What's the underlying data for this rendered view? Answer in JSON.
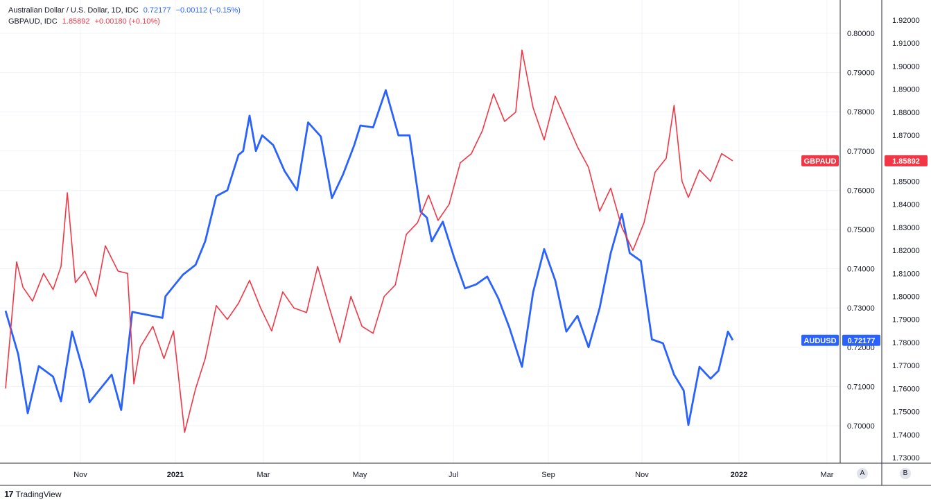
{
  "legend": {
    "audusd": {
      "name": "Australian Dollar / U.S. Dollar, 1D, IDC",
      "value": "0.72177",
      "change": "−0.00112 (−0.15%)"
    },
    "gbpaud": {
      "name": "GBPAUD, IDC",
      "value": "1.85892",
      "change": "+0.00180 (+0.10%)"
    }
  },
  "price_tags": {
    "audusd": {
      "label": "AUDUSD",
      "value": "0.72177"
    },
    "gbpaud": {
      "label": "GBPAUD",
      "value": "1.85892"
    }
  },
  "scale_buttons": {
    "a": "A",
    "b": "B"
  },
  "branding": "TradingView",
  "colors": {
    "audusd": "#2962ff",
    "gbpaud": "#f23645",
    "grid": "#f0f3fa",
    "axis_text": "#131722"
  },
  "chart_data": {
    "type": "line",
    "x_ticks": [
      {
        "label": "Nov",
        "bold": false
      },
      {
        "label": "2021",
        "bold": true
      },
      {
        "label": "Mar",
        "bold": false
      },
      {
        "label": "May",
        "bold": false
      },
      {
        "label": "Jul",
        "bold": false
      },
      {
        "label": "Sep",
        "bold": false
      },
      {
        "label": "Nov",
        "bold": false
      },
      {
        "label": "2022",
        "bold": true
      },
      {
        "label": "Mar",
        "bold": false
      }
    ],
    "axes": {
      "audusd": {
        "ylim": [
          0.692,
          0.81
        ],
        "ticks": [
          "0.80000",
          "0.79000",
          "0.78000",
          "0.77000",
          "0.76000",
          "0.75000",
          "0.74000",
          "0.73000",
          "0.72000",
          "0.71000",
          "0.70000"
        ]
      },
      "gbpaud": {
        "ylim": [
          1.73,
          1.92
        ],
        "ticks": [
          "1.92000",
          "1.91000",
          "1.90000",
          "1.89000",
          "1.88000",
          "1.87000",
          "1.86000",
          "1.85000",
          "1.84000",
          "1.83000",
          "1.82000",
          "1.81000",
          "1.80000",
          "1.79000",
          "1.78000",
          "1.77000",
          "1.76000",
          "1.75000",
          "1.74000",
          "1.73000"
        ]
      }
    },
    "series": [
      {
        "name": "AUDUSD",
        "axis": "audusd",
        "x": [
          "2020-09-28",
          "2020-10-06",
          "2020-10-12",
          "2020-10-19",
          "2020-10-28",
          "2020-11-02",
          "2020-11-09",
          "2020-11-16",
          "2020-11-20",
          "2020-11-30",
          "2020-12-04",
          "2020-12-10",
          "2020-12-17",
          "2021-01-05",
          "2021-01-07",
          "2021-01-18",
          "2021-01-26",
          "2021-02-01",
          "2021-02-08",
          "2021-02-15",
          "2021-02-22",
          "2021-02-25",
          "2021-03-01",
          "2021-03-05",
          "2021-03-09",
          "2021-03-16",
          "2021-03-23",
          "2021-03-31",
          "2021-04-07",
          "2021-04-15",
          "2021-04-22",
          "2021-04-29",
          "2021-05-06",
          "2021-05-10",
          "2021-05-18",
          "2021-05-26",
          "2021-06-03",
          "2021-06-10",
          "2021-06-17",
          "2021-06-21",
          "2021-06-24",
          "2021-07-01",
          "2021-07-08",
          "2021-07-15",
          "2021-07-22",
          "2021-07-29",
          "2021-08-05",
          "2021-08-12",
          "2021-08-20",
          "2021-08-27",
          "2021-09-03",
          "2021-09-10",
          "2021-09-17",
          "2021-09-24",
          "2021-10-01",
          "2021-10-08",
          "2021-10-15",
          "2021-10-22",
          "2021-10-27",
          "2021-11-03",
          "2021-11-10",
          "2021-11-17",
          "2021-11-24",
          "2021-11-30",
          "2021-12-03",
          "2021-12-10",
          "2021-12-17",
          "2021-12-22",
          "2021-12-28",
          "2021-12-31"
        ],
        "values": [
          0.7293,
          0.7182,
          0.7032,
          0.7152,
          0.7125,
          0.7062,
          0.724,
          0.714,
          0.706,
          0.711,
          0.713,
          0.704,
          0.729,
          0.7275,
          0.733,
          0.7385,
          0.741,
          0.747,
          0.7585,
          0.76,
          0.769,
          0.77,
          0.779,
          0.77,
          0.774,
          0.7715,
          0.765,
          0.76,
          0.7773,
          0.7737,
          0.758,
          0.764,
          0.7714,
          0.7765,
          0.776,
          0.7855,
          0.774,
          0.774,
          0.7545,
          0.753,
          0.747,
          0.752,
          0.743,
          0.735,
          0.736,
          0.738,
          0.7325,
          0.725,
          0.715,
          0.734,
          0.745,
          0.737,
          0.724,
          0.728,
          0.72,
          0.73,
          0.744,
          0.754,
          0.744,
          0.742,
          0.722,
          0.721,
          0.713,
          0.709,
          0.7002,
          0.715,
          0.712,
          0.714,
          0.724,
          0.7218
        ]
      },
      {
        "name": "GBPAUD",
        "axis": "gbpaud",
        "x": [
          "2020-09-28",
          "2020-10-05",
          "2020-10-09",
          "2020-10-15",
          "2020-10-22",
          "2020-10-28",
          "2020-11-02",
          "2020-11-06",
          "2020-11-11",
          "2020-11-17",
          "2020-11-24",
          "2020-11-30",
          "2020-12-08",
          "2020-12-14",
          "2020-12-18",
          "2020-12-22",
          "2020-12-30",
          "2021-01-06",
          "2021-01-12",
          "2021-01-19",
          "2021-01-26",
          "2021-02-01",
          "2021-02-08",
          "2021-02-15",
          "2021-02-22",
          "2021-03-01",
          "2021-03-08",
          "2021-03-15",
          "2021-03-22",
          "2021-03-29",
          "2021-04-06",
          "2021-04-13",
          "2021-04-20",
          "2021-04-27",
          "2021-05-04",
          "2021-05-11",
          "2021-05-18",
          "2021-05-25",
          "2021-06-01",
          "2021-06-08",
          "2021-06-15",
          "2021-06-22",
          "2021-06-28",
          "2021-07-05",
          "2021-07-12",
          "2021-07-19",
          "2021-07-26",
          "2021-08-02",
          "2021-08-09",
          "2021-08-16",
          "2021-08-20",
          "2021-08-27",
          "2021-09-03",
          "2021-09-10",
          "2021-09-17",
          "2021-09-24",
          "2021-10-01",
          "2021-10-08",
          "2021-10-15",
          "2021-10-22",
          "2021-10-29",
          "2021-11-05",
          "2021-11-12",
          "2021-11-19",
          "2021-11-24",
          "2021-11-29",
          "2021-12-03",
          "2021-12-10",
          "2021-12-17",
          "2021-12-24",
          "2021-12-31"
        ],
        "values": [
          1.76,
          1.815,
          1.804,
          1.798,
          1.81,
          1.803,
          1.813,
          1.845,
          1.806,
          1.811,
          1.8,
          1.822,
          1.811,
          1.81,
          1.762,
          1.778,
          1.787,
          1.773,
          1.785,
          1.741,
          1.76,
          1.773,
          1.796,
          1.79,
          1.797,
          1.807,
          1.795,
          1.785,
          1.802,
          1.795,
          1.793,
          1.813,
          1.796,
          1.78,
          1.8,
          1.787,
          1.784,
          1.8,
          1.805,
          1.827,
          1.832,
          1.844,
          1.833,
          1.84,
          1.858,
          1.862,
          1.872,
          1.888,
          1.876,
          1.88,
          1.907,
          1.882,
          1.868,
          1.887,
          1.876,
          1.865,
          1.856,
          1.837,
          1.847,
          1.83,
          1.82,
          1.832,
          1.854,
          1.86,
          1.883,
          1.85,
          1.843,
          1.855,
          1.85,
          1.862,
          1.8589
        ]
      }
    ]
  }
}
